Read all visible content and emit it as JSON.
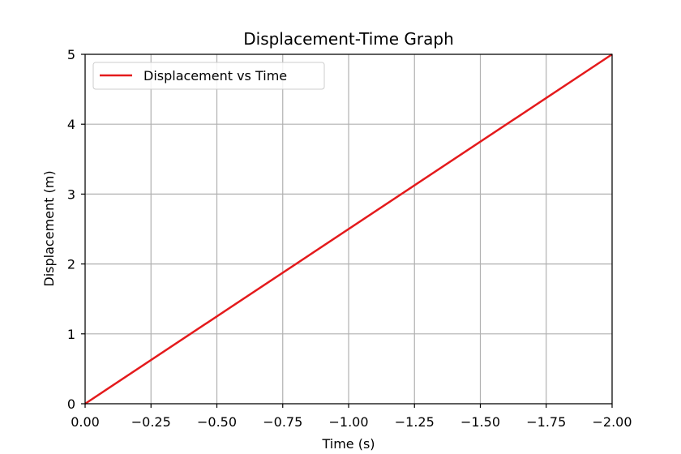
{
  "chart_data": {
    "type": "line",
    "title": "Displacement-Time Graph",
    "xlabel": "Time (s)",
    "ylabel": "Displacement (m)",
    "xlim": [
      0,
      -2
    ],
    "ylim": [
      0,
      5
    ],
    "x_ticks": [
      0,
      -0.25,
      -0.5,
      -0.75,
      -1.0,
      -1.25,
      -1.5,
      -1.75,
      -2.0
    ],
    "x_tick_labels": [
      "0.00",
      "−0.25",
      "−0.50",
      "−0.75",
      "−1.00",
      "−1.25",
      "−1.50",
      "−1.75",
      "−2.00"
    ],
    "y_ticks": [
      0,
      1,
      2,
      3,
      4,
      5
    ],
    "y_tick_labels": [
      "0",
      "1",
      "2",
      "3",
      "4",
      "5"
    ],
    "grid": true,
    "legend_position": "top-left",
    "series": [
      {
        "name": "Displacement vs Time",
        "color": "#e41a1c",
        "x": [
          0,
          -2
        ],
        "y": [
          0,
          5
        ]
      }
    ]
  }
}
